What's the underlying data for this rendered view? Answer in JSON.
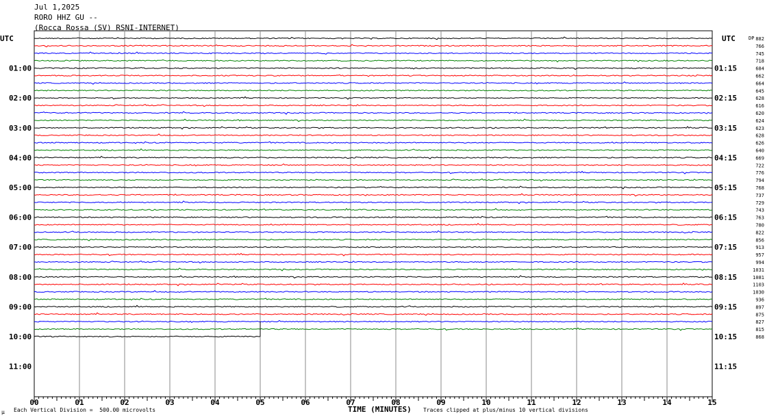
{
  "header": {
    "date": "Jul 1,2025",
    "station": "RORO HHZ GU --",
    "location": "(Rocca Rossa (SV) RSNI-INTERNET)"
  },
  "footer": {
    "scale_note": "Each Vertical Division =  500.00 microvolts",
    "xlabel": "TIME (MINUTES)",
    "clip_note": "Traces clipped at plus/minus 10 vertical divisions",
    "corner_mark": "µ"
  },
  "chart_data": {
    "type": "line",
    "title": "RORO HHZ GU --",
    "xlabel": "TIME (MINUTES)",
    "ylabel": "UTC",
    "xlim": [
      0,
      15
    ],
    "x_ticks": [
      "00",
      "01",
      "02",
      "03",
      "04",
      "05",
      "06",
      "07",
      "08",
      "09",
      "10",
      "11",
      "12",
      "13",
      "14",
      "15"
    ],
    "left_axis_title": "UTC",
    "right_axis_title": "UTC",
    "left_hour_labels": [
      "01:00",
      "02:00",
      "03:00",
      "04:00",
      "05:00",
      "06:00",
      "07:00",
      "08:00",
      "09:00",
      "10:00",
      "11:00"
    ],
    "right_hour_labels": [
      "01:15",
      "02:15",
      "03:15",
      "04:15",
      "05:15",
      "06:15",
      "07:15",
      "08:15",
      "09:15",
      "10:15",
      "11:15"
    ],
    "trace_colors": [
      "#000000",
      "#ff0000",
      "#0000ff",
      "#008000"
    ],
    "trace_count": 41,
    "last_trace_end_minute": 5,
    "right_value_header": "DP",
    "right_values": [
      "882",
      "766",
      "745",
      "718",
      "684",
      "662",
      "664",
      "645",
      "628",
      "616",
      "620",
      "624",
      "623",
      "628",
      "626",
      "640",
      "669",
      "722",
      "776",
      "794",
      "768",
      "737",
      "729",
      "743",
      "763",
      "780",
      "822",
      "856",
      "913",
      "957",
      "994",
      "1031",
      "1081",
      "1103",
      "1030",
      "936",
      "897",
      "875",
      "827",
      "815",
      "868"
    ],
    "grid": true
  }
}
